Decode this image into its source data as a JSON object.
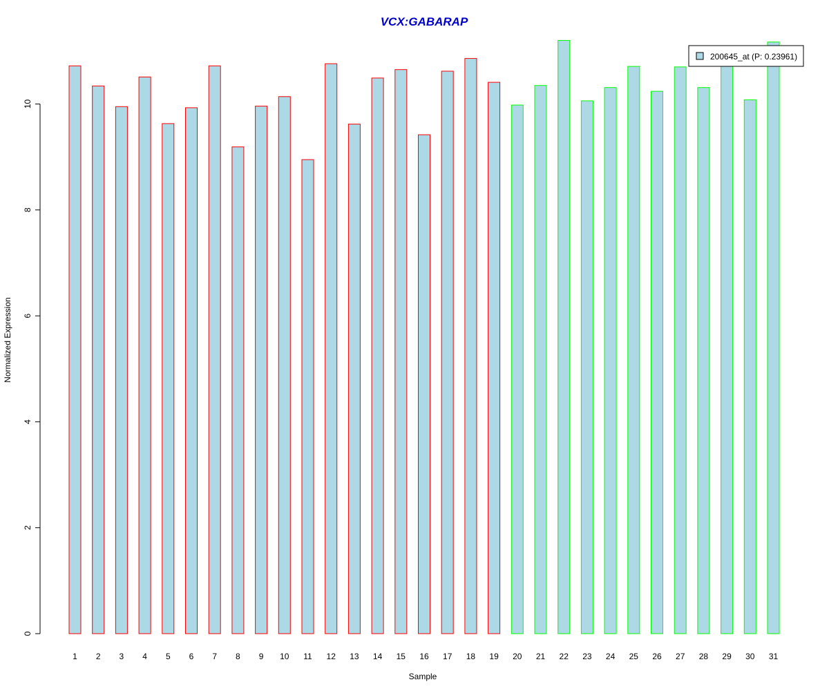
{
  "chart_data": {
    "type": "bar",
    "title": "VCX:GABARAP",
    "xlabel": "Sample",
    "ylabel": "Normalized Expression",
    "ylim": [
      0,
      11.2
    ],
    "yticks": [
      0,
      2,
      4,
      6,
      8,
      10
    ],
    "categories": [
      "1",
      "2",
      "3",
      "4",
      "5",
      "6",
      "7",
      "8",
      "9",
      "10",
      "11",
      "12",
      "13",
      "14",
      "15",
      "16",
      "17",
      "18",
      "19",
      "20",
      "21",
      "22",
      "23",
      "24",
      "25",
      "26",
      "27",
      "28",
      "29",
      "30",
      "31"
    ],
    "values": [
      10.72,
      10.34,
      9.95,
      10.51,
      9.63,
      9.93,
      10.72,
      9.19,
      9.96,
      10.14,
      8.95,
      10.76,
      9.62,
      10.49,
      10.65,
      9.42,
      10.62,
      10.86,
      10.41,
      9.98,
      10.35,
      11.2,
      10.06,
      10.31,
      10.71,
      10.24,
      10.7,
      10.31,
      10.95,
      10.08,
      11.17
    ],
    "groups": [
      "red",
      "red",
      "red",
      "red",
      "red",
      "red",
      "red",
      "red",
      "red",
      "red",
      "red",
      "red",
      "red",
      "red",
      "red",
      "red",
      "red",
      "red",
      "red",
      "green",
      "green",
      "green",
      "green",
      "green",
      "green",
      "green",
      "green",
      "green",
      "green",
      "green",
      "green"
    ],
    "colors": {
      "fill": "#ADD8E6",
      "red": "#FF0000",
      "green": "#00FF00",
      "title": "#0000CD"
    },
    "legend": {
      "label": "200645_at (P: 0.23961)",
      "position": "top-right"
    },
    "grid": false
  }
}
